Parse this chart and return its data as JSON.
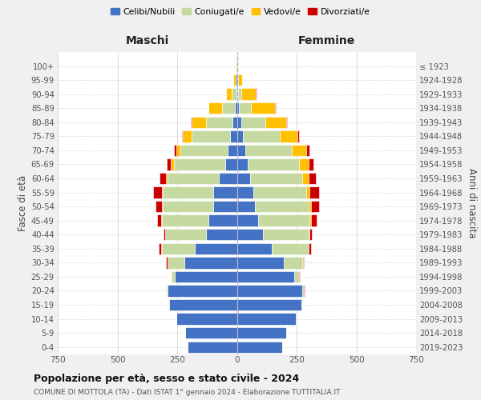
{
  "age_groups": [
    "0-4",
    "5-9",
    "10-14",
    "15-19",
    "20-24",
    "25-29",
    "30-34",
    "35-39",
    "40-44",
    "45-49",
    "50-54",
    "55-59",
    "60-64",
    "65-69",
    "70-74",
    "75-79",
    "80-84",
    "85-89",
    "90-94",
    "95-99",
    "100+"
  ],
  "birth_years": [
    "2019-2023",
    "2014-2018",
    "2009-2013",
    "2004-2008",
    "1999-2003",
    "1994-1998",
    "1989-1993",
    "1984-1988",
    "1979-1983",
    "1974-1978",
    "1969-1973",
    "1964-1968",
    "1959-1963",
    "1954-1958",
    "1949-1953",
    "1944-1948",
    "1939-1943",
    "1934-1938",
    "1929-1933",
    "1924-1928",
    "≤ 1923"
  ],
  "colors": {
    "celibe": "#4472c4",
    "coniugato": "#c5d9a0",
    "vedovo": "#ffc000",
    "divorziato": "#cc0000"
  },
  "maschi": {
    "celibe": [
      205,
      215,
      255,
      285,
      290,
      260,
      220,
      175,
      130,
      120,
      100,
      100,
      75,
      50,
      40,
      30,
      20,
      8,
      3,
      4,
      2
    ],
    "coniugato": [
      0,
      0,
      0,
      2,
      5,
      15,
      70,
      140,
      170,
      195,
      210,
      210,
      215,
      215,
      195,
      160,
      110,
      55,
      18,
      2,
      0
    ],
    "vedovo": [
      0,
      0,
      0,
      0,
      1,
      1,
      1,
      2,
      2,
      3,
      4,
      5,
      8,
      12,
      20,
      35,
      60,
      55,
      25,
      8,
      2
    ],
    "divorziato": [
      0,
      0,
      0,
      0,
      1,
      2,
      5,
      10,
      5,
      15,
      25,
      35,
      25,
      15,
      10,
      5,
      2,
      2,
      0,
      0,
      0
    ]
  },
  "femmine": {
    "celibe": [
      190,
      205,
      245,
      270,
      275,
      240,
      195,
      145,
      110,
      90,
      75,
      70,
      55,
      45,
      35,
      25,
      18,
      10,
      5,
      3,
      2
    ],
    "coniugato": [
      0,
      0,
      0,
      2,
      5,
      20,
      80,
      155,
      190,
      215,
      225,
      220,
      220,
      215,
      195,
      155,
      100,
      50,
      15,
      2,
      0
    ],
    "vedovo": [
      0,
      0,
      0,
      0,
      1,
      1,
      1,
      2,
      3,
      5,
      10,
      15,
      25,
      40,
      60,
      75,
      90,
      100,
      60,
      18,
      3
    ],
    "divorziato": [
      0,
      0,
      0,
      0,
      1,
      2,
      5,
      8,
      10,
      25,
      35,
      40,
      30,
      20,
      15,
      5,
      2,
      2,
      1,
      0,
      0
    ]
  },
  "xlim": 750,
  "xticks": [
    -750,
    -500,
    -250,
    0,
    250,
    500,
    750
  ],
  "title": "Popolazione per età, sesso e stato civile - 2024",
  "subtitle": "COMUNE DI MOTTOLA (TA) - Dati ISTAT 1° gennaio 2024 - Elaborazione TUTTITALIA.IT",
  "ylabel_left": "Fasce di età",
  "ylabel_right": "Anni di nascita",
  "xlabel_left": "Maschi",
  "xlabel_right": "Femmine",
  "bg_color": "#f0f0f0",
  "plot_bg": "#ffffff",
  "legend_labels": [
    "Celibi/Nubili",
    "Coniugati/e",
    "Vedovi/e",
    "Divorziati/e"
  ]
}
